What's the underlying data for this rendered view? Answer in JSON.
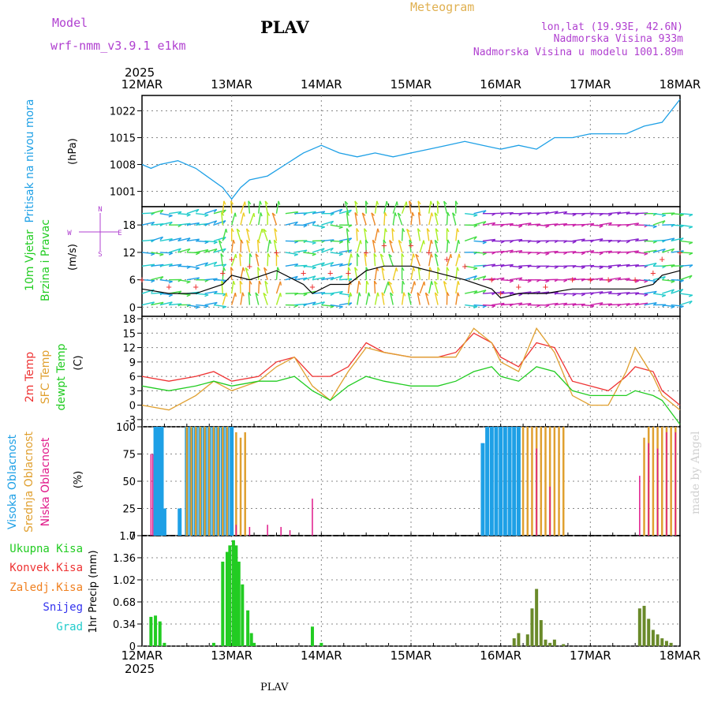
{
  "header": {
    "model_label": "Model",
    "model_name": "wrf-nmm_v3.9.1 e1km",
    "station": "PLAV",
    "product": "Meteogram",
    "lonlat": "lon,lat (19.93E, 42.6N)",
    "altitude": "Nadmorska Visina 933m",
    "model_altitude": "Nadmorska Visina u modelu 1001.89m",
    "year_top": "2025",
    "year_bottom": "2025",
    "footer_station": "PLAV",
    "credit": "made by Angel"
  },
  "colors": {
    "pressure": "#1ea0e6",
    "temp2m": "#ee3333",
    "sfc": "#e0a030",
    "dewpt": "#22cc22",
    "high_cloud": "#1ea0e6",
    "mid_cloud": "#e0a030",
    "low_cloud": "#e01a8a",
    "precip": "#22cc22",
    "conv": "#ee3333",
    "frz": "#f08020",
    "snow": "#3333ee",
    "hail": "#22cccc"
  },
  "chart_data": [
    {
      "panel": "pressure",
      "type": "line",
      "x_labels": [
        "12MAR",
        "13MAR",
        "14MAR",
        "15MAR",
        "16MAR",
        "17MAR",
        "18MAR"
      ],
      "ylabel": "Pritisak na nivou mora",
      "unit": "(hPa)",
      "yticks": [
        1001,
        1008,
        1015,
        1022
      ],
      "ylim": [
        997,
        1026
      ],
      "x": [
        0,
        0.1,
        0.2,
        0.4,
        0.6,
        0.9,
        1.0,
        1.1,
        1.2,
        1.4,
        1.6,
        1.8,
        2.0,
        2.2,
        2.4,
        2.6,
        2.8,
        3.0,
        3.2,
        3.4,
        3.6,
        3.8,
        4.0,
        4.2,
        4.4,
        4.6,
        4.8,
        5.0,
        5.2,
        5.4,
        5.6,
        5.8,
        6.0
      ],
      "values": [
        1008,
        1007,
        1008,
        1009,
        1007,
        1002,
        999,
        1002,
        1004,
        1005,
        1008,
        1011,
        1013,
        1011,
        1010,
        1011,
        1010,
        1011,
        1012,
        1013,
        1014,
        1013,
        1012,
        1013,
        1012,
        1015,
        1015,
        1016,
        1016,
        1016,
        1018,
        1019,
        1025
      ]
    },
    {
      "panel": "wind",
      "type": "line",
      "ylabel": "10m Vjetar Brzina i Pravac",
      "unit": "(m/s)",
      "yticks": [
        0,
        6,
        12,
        18
      ],
      "ylim": [
        -2,
        22
      ],
      "compass": [
        "N",
        "E",
        "W",
        "S"
      ],
      "x": [
        0,
        0.3,
        0.6,
        0.9,
        1.0,
        1.2,
        1.5,
        1.8,
        1.9,
        2.1,
        2.3,
        2.5,
        2.7,
        3.0,
        3.2,
        3.4,
        3.6,
        3.9,
        4.0,
        4.2,
        4.5,
        4.8,
        5.0,
        5.2,
        5.5,
        5.7,
        5.8,
        6.0
      ],
      "values": [
        4,
        3,
        3,
        5,
        7,
        6,
        8,
        5,
        3,
        5,
        5,
        8,
        9,
        9,
        8,
        7,
        6,
        4,
        2,
        3,
        3,
        4,
        4,
        4,
        4,
        5,
        7,
        8
      ]
    },
    {
      "panel": "temperature",
      "type": "line",
      "ylabel": "2m Temp / SFC Temp / dewpt Temp",
      "unit": "(C)",
      "yticks": [
        -3,
        0,
        3,
        6,
        9,
        12,
        15,
        18
      ],
      "ylim": [
        -4.5,
        18.5
      ],
      "x": [
        0,
        0.3,
        0.6,
        0.8,
        1.0,
        1.3,
        1.5,
        1.7,
        1.9,
        2.1,
        2.3,
        2.5,
        2.7,
        3.0,
        3.3,
        3.5,
        3.7,
        3.9,
        4.0,
        4.2,
        4.4,
        4.6,
        4.8,
        5.0,
        5.2,
        5.4,
        5.5,
        5.7,
        5.8,
        6.0
      ],
      "series": [
        {
          "name": "2m Temp",
          "values": [
            6,
            5,
            6,
            7,
            5,
            6,
            9,
            10,
            6,
            6,
            8,
            13,
            11,
            10,
            10,
            11,
            15,
            13,
            10,
            8,
            13,
            12,
            5,
            4,
            3,
            6,
            8,
            7,
            3,
            0
          ]
        },
        {
          "name": "SFC Temp",
          "values": [
            0,
            -1,
            2,
            5,
            3,
            5,
            8,
            10,
            4,
            1,
            7,
            12,
            11,
            10,
            10,
            10,
            16,
            13,
            9,
            7,
            16,
            11,
            2,
            0,
            0,
            7,
            12,
            6,
            2,
            -1
          ]
        },
        {
          "name": "dewpt Temp",
          "values": [
            4,
            3,
            4,
            5,
            4,
            5,
            5,
            6,
            3,
            1,
            4,
            6,
            5,
            4,
            4,
            5,
            7,
            8,
            6,
            5,
            8,
            7,
            3,
            2,
            2,
            2,
            3,
            2,
            1,
            -4
          ]
        }
      ]
    },
    {
      "panel": "cloud",
      "type": "bar",
      "ylabel": "Visoka Oblacnost / Srednja Oblacnost / Niska Oblacnost",
      "unit": "(%)",
      "yticks": [
        0,
        25,
        50,
        75,
        100
      ],
      "ylim": [
        0,
        100
      ],
      "series": [
        {
          "name": "Visoka Oblacnost",
          "x": [
            0.15,
            0.18,
            0.2,
            0.22,
            0.25,
            0.42,
            0.5,
            0.55,
            0.6,
            0.65,
            0.7,
            0.75,
            0.8,
            0.85,
            0.9,
            0.95,
            1.0,
            3.8,
            3.85,
            3.9,
            3.95,
            4.0,
            4.05,
            4.1,
            4.15,
            4.2
          ],
          "values": [
            100,
            100,
            100,
            100,
            25,
            25,
            100,
            100,
            100,
            100,
            100,
            100,
            100,
            100,
            100,
            100,
            100,
            85,
            100,
            100,
            100,
            100,
            100,
            100,
            100,
            100
          ]
        },
        {
          "name": "Srednja Oblacnost",
          "x": [
            0.5,
            0.55,
            0.6,
            0.65,
            0.7,
            0.75,
            0.8,
            0.85,
            0.9,
            0.95,
            1.05,
            1.1,
            1.15,
            4.25,
            4.3,
            4.35,
            4.4,
            4.45,
            4.5,
            4.55,
            4.6,
            4.65,
            4.7,
            5.6,
            5.65,
            5.7,
            5.75,
            5.8,
            5.85,
            5.9,
            5.95
          ],
          "values": [
            100,
            100,
            100,
            100,
            100,
            100,
            100,
            100,
            100,
            100,
            95,
            90,
            95,
            100,
            100,
            100,
            100,
            100,
            100,
            100,
            100,
            100,
            100,
            90,
            100,
            100,
            100,
            100,
            100,
            100,
            100
          ]
        },
        {
          "name": "Niska Oblacnost",
          "x": [
            0.1,
            0.12,
            1.05,
            1.2,
            1.4,
            1.55,
            1.65,
            1.9,
            4.4,
            4.55,
            5.55,
            5.65,
            5.75,
            5.85,
            5.95
          ],
          "values": [
            75,
            75,
            10,
            8,
            10,
            8,
            5,
            34,
            80,
            45,
            55,
            85,
            80,
            95,
            95
          ]
        }
      ]
    },
    {
      "panel": "precip",
      "type": "bar",
      "ylabel": "1hr Precip",
      "unit": "(mm)",
      "yticks": [
        0,
        0.34,
        0.68,
        1.02,
        1.36,
        1.7
      ],
      "ylim": [
        0,
        1.7
      ],
      "legend": [
        "Ukupna Kisa",
        "Konvek.Kisa",
        "Zaledj.Kisa",
        "Snijeg",
        "Grad"
      ],
      "x": [
        0.1,
        0.15,
        0.2,
        0.25,
        0.8,
        0.9,
        0.95,
        0.98,
        1.02,
        1.05,
        1.08,
        1.12,
        1.18,
        1.22,
        1.25,
        1.9,
        2.0,
        4.15,
        4.2,
        4.3,
        4.35,
        4.4,
        4.45,
        4.5,
        4.55,
        4.6,
        4.7,
        5.55,
        5.6,
        5.65,
        5.7,
        5.75,
        5.8,
        5.85,
        5.9
      ],
      "values": [
        0.45,
        0.47,
        0.38,
        0.05,
        0.05,
        1.3,
        1.45,
        1.55,
        1.63,
        1.55,
        1.3,
        0.95,
        0.55,
        0.2,
        0.05,
        0.3,
        0.05,
        0.12,
        0.2,
        0.18,
        0.58,
        0.88,
        0.4,
        0.1,
        0.05,
        0.1,
        0.03,
        0.58,
        0.62,
        0.42,
        0.25,
        0.18,
        0.12,
        0.08,
        0.05
      ]
    }
  ]
}
